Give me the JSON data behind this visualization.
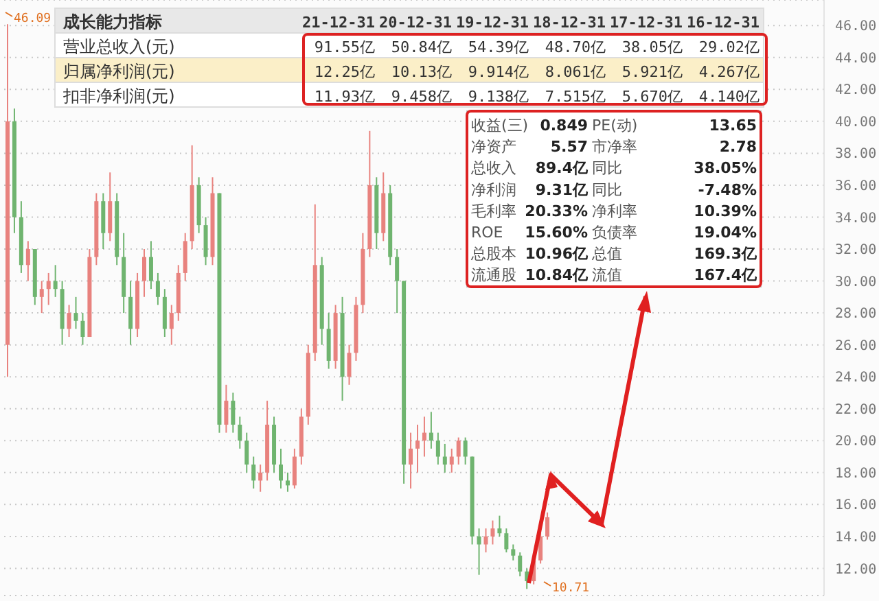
{
  "chart_data": {
    "type": "candlestick",
    "categories": [
      null,
      null,
      null,
      null,
      null,
      null,
      null,
      null,
      null,
      null,
      null,
      null,
      null,
      null,
      null,
      null,
      null,
      null,
      null,
      null,
      null,
      null,
      null,
      null,
      null,
      null,
      null,
      null,
      null,
      null,
      null,
      null,
      null,
      null,
      null,
      null,
      null,
      null,
      null,
      null,
      null,
      null,
      null,
      null,
      null,
      null,
      null,
      null,
      null,
      null,
      null,
      null,
      null,
      null,
      null,
      null,
      null,
      null,
      null,
      null,
      null,
      null,
      null,
      null,
      null,
      null,
      null,
      null,
      null,
      null,
      null,
      null,
      null,
      null,
      null,
      null,
      null,
      null,
      null,
      null,
      null,
      null,
      null,
      null,
      null,
      null,
      null,
      null,
      null,
      null,
      null,
      null,
      null,
      null,
      null,
      null,
      null,
      null,
      null,
      null,
      null,
      null,
      null,
      null,
      null,
      null,
      null,
      null,
      null,
      null,
      null,
      null,
      null,
      null,
      null,
      null,
      null,
      null,
      null,
      null
    ],
    "ohlc": [
      [
        26,
        46.09,
        24,
        40
      ],
      [
        40,
        40.8,
        33,
        34
      ],
      [
        34,
        35,
        30.5,
        31
      ],
      [
        31,
        32.5,
        30,
        32
      ],
      [
        32,
        32,
        28.5,
        29
      ],
      [
        29,
        30,
        28,
        29.5
      ],
      [
        29.5,
        30.5,
        28.5,
        30
      ],
      [
        30,
        31,
        29,
        29.5
      ],
      [
        29.5,
        30,
        26,
        27
      ],
      [
        27,
        28.5,
        26.5,
        28
      ],
      [
        28,
        29,
        27,
        27.5
      ],
      [
        27.5,
        28,
        26,
        26.5
      ],
      [
        26.5,
        32,
        26.5,
        31.5
      ],
      [
        31.5,
        35.5,
        31,
        35
      ],
      [
        35,
        35.5,
        32,
        33
      ],
      [
        33,
        36.8,
        32.5,
        35
      ],
      [
        35,
        35.5,
        31,
        31.5
      ],
      [
        31.5,
        33,
        28,
        29
      ],
      [
        29,
        30,
        26,
        27
      ],
      [
        27,
        30.5,
        26.5,
        30
      ],
      [
        30,
        32,
        29,
        31.5
      ],
      [
        31.5,
        32.5,
        29.5,
        30
      ],
      [
        30,
        30.5,
        28.5,
        29
      ],
      [
        29,
        29.5,
        26.5,
        27
      ],
      [
        27,
        28.5,
        26,
        28
      ],
      [
        28,
        31,
        27.5,
        30.5
      ],
      [
        30.5,
        33,
        30,
        32.5
      ],
      [
        32.5,
        38.5,
        32,
        36
      ],
      [
        36,
        36.5,
        33,
        33.5
      ],
      [
        33.5,
        34,
        31,
        31.5
      ],
      [
        31.5,
        36.5,
        31,
        35.5
      ],
      [
        35.5,
        35.5,
        20.5,
        21
      ],
      [
        21,
        23.5,
        20.5,
        22.5
      ],
      [
        22.5,
        23,
        20.5,
        21
      ],
      [
        21,
        21.5,
        19.5,
        20
      ],
      [
        20,
        20.5,
        18,
        18.5
      ],
      [
        18.5,
        19,
        17,
        17.5
      ],
      [
        17.5,
        18.5,
        16.8,
        18
      ],
      [
        18,
        22.5,
        17.5,
        21
      ],
      [
        21,
        21.5,
        18,
        18.5
      ],
      [
        18.5,
        19.5,
        17,
        17.5
      ],
      [
        17.5,
        18,
        16.8,
        17.2
      ],
      [
        17.2,
        19.5,
        17,
        19
      ],
      [
        19,
        22,
        18.5,
        21.5
      ],
      [
        21.5,
        26,
        21,
        25.5
      ],
      [
        25.5,
        34.8,
        25,
        31
      ],
      [
        31,
        31.5,
        26,
        27
      ],
      [
        27,
        28,
        24.5,
        25
      ],
      [
        25,
        28.5,
        24.5,
        28
      ],
      [
        28,
        29,
        22.5,
        24
      ],
      [
        24,
        26,
        23.5,
        25.5
      ],
      [
        25.5,
        29,
        25,
        28.5
      ],
      [
        28.5,
        33,
        28,
        32
      ],
      [
        32,
        39.4,
        31.5,
        36
      ],
      [
        36,
        36.5,
        32,
        33
      ],
      [
        33,
        36.8,
        32.5,
        35.5
      ],
      [
        35.5,
        36,
        31,
        31.5
      ],
      [
        31.5,
        32,
        28,
        30
      ],
      [
        30,
        30,
        17.3,
        18.5
      ],
      [
        18.5,
        20.5,
        17,
        19.5
      ],
      [
        19.5,
        21,
        18,
        20
      ],
      [
        20,
        21.5,
        19,
        20.5
      ],
      [
        20.5,
        21.8,
        19.5,
        20
      ],
      [
        20,
        20.5,
        18.5,
        19
      ],
      [
        19,
        19.8,
        18,
        18.5
      ],
      [
        18.5,
        19.5,
        18,
        19
      ],
      [
        19,
        20.2,
        18.5,
        20
      ],
      [
        20,
        20.2,
        18.5,
        19
      ],
      [
        19,
        19,
        13.5,
        14
      ],
      [
        14,
        14.5,
        11.6,
        13.5
      ],
      [
        13.5,
        14.5,
        13,
        14
      ],
      [
        14,
        15,
        13.5,
        14.5
      ],
      [
        14.5,
        15.3,
        14,
        14.2
      ],
      [
        14.2,
        14.5,
        13,
        13.2
      ],
      [
        13.2,
        13.5,
        12.5,
        12.8
      ],
      [
        12.8,
        13,
        11.5,
        11.8
      ],
      [
        11.8,
        12,
        10.71,
        11.2
      ],
      [
        11.2,
        12.8,
        11,
        12.5
      ],
      [
        12.5,
        14.5,
        12.3,
        14
      ],
      [
        14,
        15.5,
        13.8,
        15.2
      ],
      null,
      null,
      null,
      null,
      null,
      null,
      null,
      null,
      null,
      null,
      null,
      null,
      null,
      null,
      null,
      null,
      null,
      null,
      null,
      null,
      null,
      null,
      null,
      null,
      null,
      null,
      null,
      null,
      null,
      null,
      null,
      null,
      null,
      null,
      null,
      null,
      null,
      null,
      null,
      null
    ],
    "colors": [
      "#e8827e",
      "#6fb46f",
      "#6fb46f",
      "#e8827e",
      "#6fb46f",
      "#e8827e",
      "#e8827e",
      "#6fb46f",
      "#6fb46f",
      "#e8827e",
      "#6fb46f",
      "#6fb46f",
      "#e8827e",
      "#e8827e",
      "#6fb46f",
      "#e8827e",
      "#6fb46f",
      "#6fb46f",
      "#6fb46f",
      "#e8827e",
      "#e8827e",
      "#6fb46f",
      "#6fb46f",
      "#6fb46f",
      "#e8827e",
      "#e8827e",
      "#e8827e",
      "#e8827e",
      "#6fb46f",
      "#6fb46f",
      "#e8827e",
      "#6fb46f",
      "#e8827e",
      "#6fb46f",
      "#6fb46f",
      "#6fb46f",
      "#6fb46f",
      "#e8827e",
      "#e8827e",
      "#6fb46f",
      "#6fb46f",
      "#6fb46f",
      "#e8827e",
      "#e8827e",
      "#e8827e",
      "#e8827e",
      "#6fb46f",
      "#6fb46f",
      "#e8827e",
      "#6fb46f",
      "#e8827e",
      "#e8827e",
      "#e8827e",
      "#e8827e",
      "#6fb46f",
      "#e8827e",
      "#6fb46f",
      "#6fb46f",
      "#6fb46f",
      "#e8827e",
      "#e8827e",
      "#e8827e",
      "#6fb46f",
      "#6fb46f",
      "#6fb46f",
      "#e8827e",
      "#e8827e",
      "#6fb46f",
      "#6fb46f",
      "#6fb46f",
      "#e8827e",
      "#e8827e",
      "#6fb46f",
      "#6fb46f",
      "#6fb46f",
      "#6fb46f",
      "#6fb46f",
      "#e8827e",
      "#e8827e",
      "#e8827e",
      null,
      null,
      null,
      null,
      null,
      null,
      null,
      null,
      null,
      null,
      null,
      null,
      null,
      null,
      null,
      null,
      null,
      null,
      null,
      null,
      null,
      null,
      null,
      null,
      null,
      null,
      null,
      null,
      null,
      null,
      null,
      null,
      null,
      null,
      null,
      null,
      null,
      null,
      null,
      null
    ],
    "ylim": [
      10.3,
      47.6
    ],
    "yticks": [
      {
        "value": 12,
        "label": "12.00"
      },
      {
        "value": 14,
        "label": "14.00"
      },
      {
        "value": 16,
        "label": "16.00"
      },
      {
        "value": 18,
        "label": "18.00"
      },
      {
        "value": 20,
        "label": "20.00"
      },
      {
        "value": 22,
        "label": "22.00"
      },
      {
        "value": 24,
        "label": "24.00"
      },
      {
        "value": 26,
        "label": "26.00"
      },
      {
        "value": 28,
        "label": "28.00"
      },
      {
        "value": 30,
        "label": "30.00"
      },
      {
        "value": 32,
        "label": "32.00"
      },
      {
        "value": 34,
        "label": "34.00"
      },
      {
        "value": 36,
        "label": "36.00"
      },
      {
        "value": 38,
        "label": "38.00"
      },
      {
        "value": 40,
        "label": "40.00"
      },
      {
        "value": 42,
        "label": "42.00"
      },
      {
        "value": 44,
        "label": "44.00"
      },
      {
        "value": 46,
        "label": "46.00"
      }
    ],
    "grid": "y",
    "tick_labels": "y",
    "annotations": [
      "成长能力指标",
      "21-12-31",
      "20-12-31",
      "19-12-31",
      "18-12-31",
      "17-12-31",
      "16-12-31",
      "营业总收入(元)",
      "91.55亿",
      "50.84亿",
      "54.39亿",
      "48.70亿",
      "38.05亿",
      "29.02亿",
      "归属净利润(元)",
      "12.25亿",
      "10.13亿",
      "9.914亿",
      "8.061亿",
      "5.921亿",
      "4.267亿",
      "扣非净利润(元)",
      "11.93亿",
      "9.458亿",
      "9.138亿",
      "7.515亿",
      "5.670亿",
      "4.140亿",
      "收益(三)",
      "0.849",
      "PE(动)",
      "13.65",
      "净资产",
      "5.57",
      "市净率",
      "2.78",
      "总收入",
      "89.4亿",
      "同比",
      "38.05%",
      "净利润",
      "9.31亿",
      "同比",
      "-7.48%",
      "毛利率",
      "20.33%",
      "净利率",
      "10.39%",
      "ROE",
      "15.60%",
      "负债率",
      "19.04%",
      "总股本",
      "10.96亿",
      "总值",
      "169.3亿",
      "流通股",
      "10.84亿",
      "流值",
      "167.4亿",
      "46.09",
      "10.71"
    ]
  }
}
